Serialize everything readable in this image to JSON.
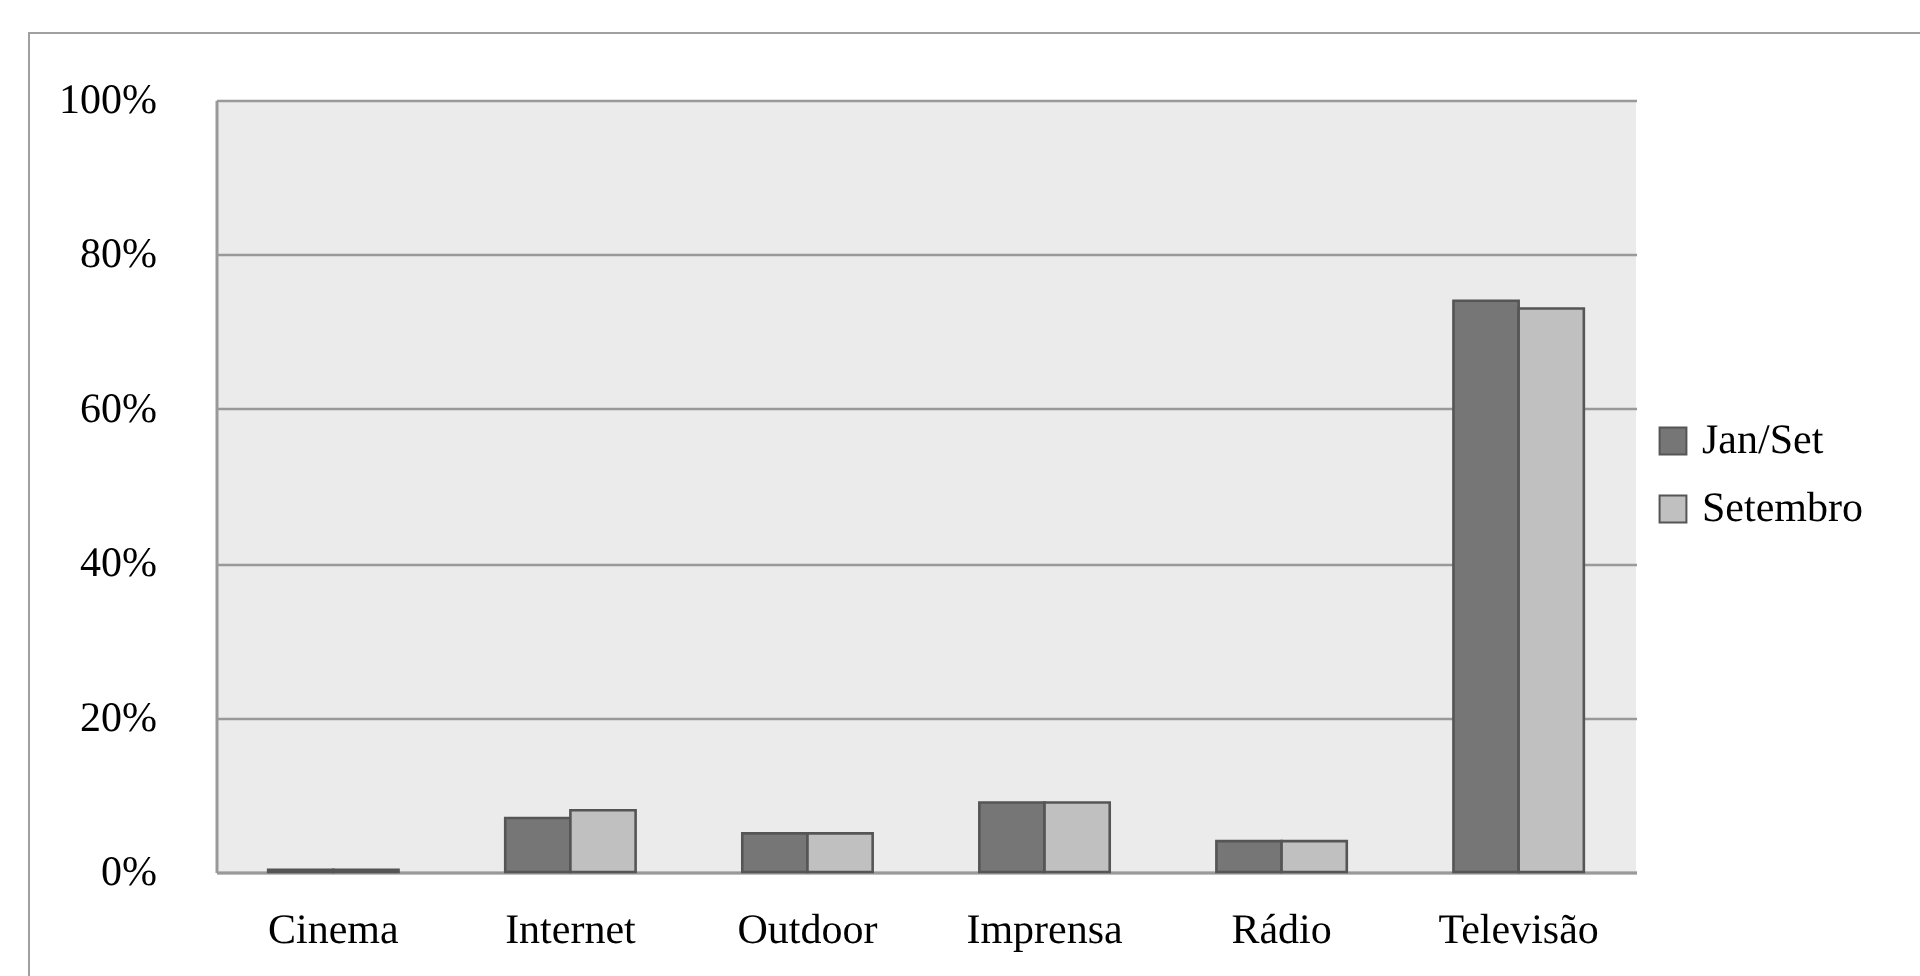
{
  "chart_data": {
    "type": "bar",
    "categories": [
      "Cinema",
      "Internet",
      "Outdoor",
      "Imprensa",
      "Rádio",
      "Televisão"
    ],
    "series": [
      {
        "name": "Jan/Set",
        "color": "#767676",
        "values": [
          0.3,
          7,
          5,
          9,
          4,
          74
        ]
      },
      {
        "name": "Setembro",
        "color": "#c0c0c0",
        "values": [
          0.3,
          8,
          5,
          9,
          4,
          73
        ]
      }
    ],
    "ylim": [
      0,
      100
    ],
    "yticks": [
      {
        "value": 0,
        "label": "0%"
      },
      {
        "value": 20,
        "label": "20%"
      },
      {
        "value": 40,
        "label": "40%"
      },
      {
        "value": 60,
        "label": "60%"
      },
      {
        "value": 80,
        "label": "80%"
      },
      {
        "value": 100,
        "label": "100%"
      }
    ],
    "grid": "y",
    "legend": "right"
  }
}
